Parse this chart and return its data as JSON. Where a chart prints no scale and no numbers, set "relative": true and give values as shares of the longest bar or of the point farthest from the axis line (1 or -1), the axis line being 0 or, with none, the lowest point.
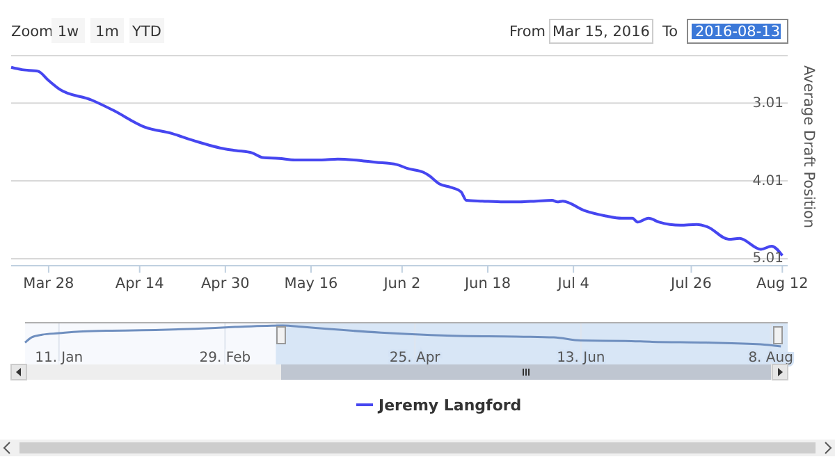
{
  "chart_data": [
    {
      "type": "line",
      "ylabel": "Average Draft Position",
      "annotations": [
        "Zoom",
        "1w",
        "1m",
        "YTD",
        "From",
        "Mar 15, 2016",
        "To",
        "2016-08-13"
      ],
      "xlim": [
        "2016-03-21",
        "2016-08-13"
      ],
      "xticks": [
        {
          "value": "2016-03-28",
          "label": "Mar 28"
        },
        {
          "value": "2016-04-14",
          "label": "Apr 14"
        },
        {
          "value": "2016-04-30",
          "label": "Apr 30"
        },
        {
          "value": "2016-05-16",
          "label": "May 16"
        },
        {
          "value": "2016-06-02",
          "label": "Jun 2"
        },
        {
          "value": "2016-06-18",
          "label": "Jun 18"
        },
        {
          "value": "2016-07-04",
          "label": "Jul 4"
        },
        {
          "value": "2016-07-26",
          "label": "Jul 26"
        },
        {
          "value": "2016-08-12",
          "label": "Aug 12"
        }
      ],
      "ylim": [
        5.1,
        2.4
      ],
      "yticks": [
        3.01,
        4.01,
        5.01
      ],
      "grid": "y",
      "legend": "bottom",
      "marker": "none",
      "line_style": "solid",
      "x": [
        "2016-03-21",
        "2016-03-23",
        "2016-03-26",
        "2016-03-28",
        "2016-03-30",
        "2016-04-05",
        "2016-04-09",
        "2016-04-15",
        "2016-04-20",
        "2016-04-24",
        "2016-04-30",
        "2016-05-02",
        "2016-05-05",
        "2016-05-07",
        "2016-05-10",
        "2016-05-13",
        "2016-05-18",
        "2016-05-21",
        "2016-05-24",
        "2016-05-28",
        "2016-06-01",
        "2016-06-03",
        "2016-06-06",
        "2016-06-07",
        "2016-06-09",
        "2016-06-11",
        "2016-06-13",
        "2016-06-14",
        "2016-06-17",
        "2016-06-21",
        "2016-06-24",
        "2016-06-27",
        "2016-06-30",
        "2016-07-01",
        "2016-07-02",
        "2016-07-06",
        "2016-07-10",
        "2016-07-13",
        "2016-07-15",
        "2016-07-16",
        "2016-07-18",
        "2016-07-20",
        "2016-07-24",
        "2016-07-27",
        "2016-07-29",
        "2016-08-02",
        "2016-08-04",
        "2016-08-08",
        "2016-08-10",
        "2016-08-12"
      ],
      "series": [
        {
          "name": "Jeremy Langford",
          "color": "#4646f0",
          "values": [
            2.55,
            2.58,
            2.6,
            2.72,
            2.83,
            2.97,
            3.1,
            3.32,
            3.4,
            3.49,
            3.6,
            3.62,
            3.65,
            3.71,
            3.72,
            3.74,
            3.74,
            3.73,
            3.74,
            3.77,
            3.8,
            3.85,
            3.9,
            3.94,
            4.05,
            4.09,
            4.15,
            4.26,
            4.27,
            4.28,
            4.28,
            4.27,
            4.26,
            4.28,
            4.27,
            4.39,
            4.46,
            4.49,
            4.49,
            4.54,
            4.49,
            4.54,
            4.58,
            4.57,
            4.6,
            4.76,
            4.75,
            4.89,
            4.85,
            4.97
          ]
        }
      ]
    },
    {
      "type": "line",
      "relative": true,
      "xlim": [
        "2016-01-01",
        "2016-08-13"
      ],
      "xticks": [
        {
          "value": "2016-01-11",
          "label": "11. Jan"
        },
        {
          "value": "2016-02-29",
          "label": "29. Feb"
        },
        {
          "value": "2016-04-25",
          "label": "25. Apr"
        },
        {
          "value": "2016-06-13",
          "label": "13. Jun"
        },
        {
          "value": "2016-08-08",
          "label": "8. Aug"
        }
      ],
      "grid": "x",
      "bands": [
        {
          "axis": "x",
          "from": "2016-03-15",
          "to": "2016-08-13",
          "color": "#d4e3f5"
        }
      ],
      "x": [
        "2016-01-01",
        "2016-01-03",
        "2016-01-06",
        "2016-01-11",
        "2016-01-17",
        "2016-01-25",
        "2016-02-10",
        "2016-02-20",
        "2016-03-03",
        "2016-03-17",
        "2016-03-23",
        "2016-03-30",
        "2016-04-15",
        "2016-04-23",
        "2016-05-06",
        "2016-05-25",
        "2016-06-05",
        "2016-06-13",
        "2016-06-26",
        "2016-07-04",
        "2016-07-20",
        "2016-08-05",
        "2016-08-11"
      ],
      "series": [
        {
          "color": "#6f8fbf",
          "values": [
            0.18,
            0.44,
            0.56,
            0.63,
            0.71,
            0.75,
            0.79,
            0.84,
            0.93,
            1,
            0.93,
            0.84,
            0.66,
            0.59,
            0.51,
            0.47,
            0.43,
            0.28,
            0.26,
            0.22,
            0.18,
            0.1,
            0
          ]
        }
      ]
    }
  ]
}
